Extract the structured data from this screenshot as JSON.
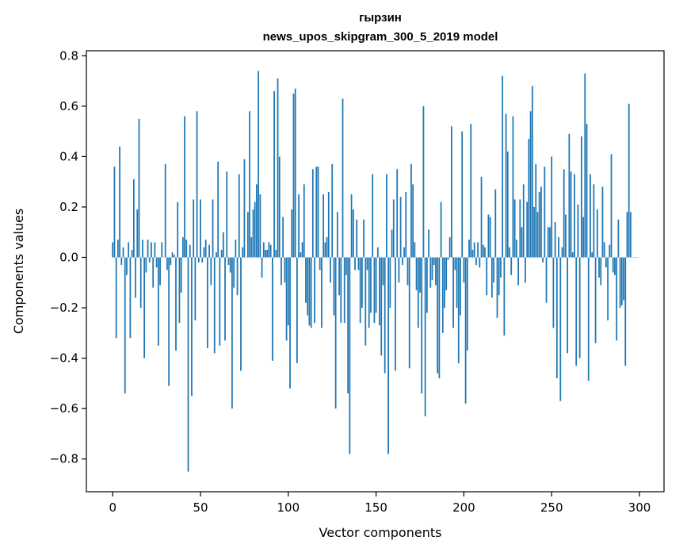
{
  "chart_data": {
    "type": "bar",
    "title_line1": "гырзин",
    "title_line2": "news_upos_skipgram_300_5_2019 model",
    "xlabel": "Vector components",
    "ylabel": "Components values",
    "xlim": [
      -15,
      314
    ],
    "ylim": [
      -0.93,
      0.82
    ],
    "xticks": [
      0,
      50,
      100,
      150,
      200,
      250,
      300
    ],
    "xtick_labels": [
      "0",
      "50",
      "100",
      "150",
      "200",
      "250",
      "300"
    ],
    "yticks": [
      -0.8,
      -0.6,
      -0.4,
      -0.2,
      0.0,
      0.2,
      0.4,
      0.6,
      0.8
    ],
    "ytick_labels": [
      "−0.8",
      "−0.6",
      "−0.4",
      "−0.2",
      "0.0",
      "0.2",
      "0.4",
      "0.6",
      "0.8"
    ],
    "bar_color": "#1f77b4",
    "grid": false,
    "values": [
      0.06,
      0.36,
      -0.32,
      0.07,
      0.44,
      -0.03,
      0.04,
      -0.54,
      -0.07,
      0.06,
      -0.32,
      0.03,
      0.31,
      -0.16,
      0.19,
      0.55,
      -0.2,
      0.07,
      -0.4,
      -0.06,
      0.07,
      -0.02,
      0.06,
      -0.12,
      0.06,
      -0.04,
      -0.35,
      -0.11,
      0.06,
      0.0,
      0.37,
      -0.05,
      -0.51,
      -0.03,
      0.02,
      0.01,
      -0.37,
      0.22,
      -0.26,
      -0.14,
      0.08,
      0.56,
      0.07,
      -0.85,
      0.05,
      -0.55,
      0.23,
      -0.25,
      0.58,
      -0.02,
      0.23,
      -0.02,
      0.04,
      0.07,
      -0.36,
      0.05,
      -0.11,
      0.23,
      -0.38,
      0.02,
      0.38,
      -0.35,
      0.03,
      0.1,
      -0.33,
      0.34,
      -0.03,
      -0.06,
      -0.6,
      -0.12,
      0.07,
      -0.15,
      0.33,
      -0.45,
      0.04,
      0.39,
      0.0,
      0.18,
      0.58,
      0.08,
      0.19,
      0.22,
      0.29,
      0.74,
      0.25,
      -0.08,
      0.06,
      0.03,
      0.03,
      0.06,
      0.05,
      -0.41,
      0.66,
      0.03,
      0.71,
      0.4,
      -0.11,
      0.16,
      -0.1,
      -0.33,
      -0.27,
      -0.52,
      0.19,
      0.65,
      0.67,
      -0.42,
      0.25,
      0.02,
      0.06,
      0.29,
      -0.18,
      -0.23,
      -0.27,
      -0.28,
      0.35,
      -0.26,
      0.36,
      0.36,
      -0.05,
      -0.28,
      0.25,
      0.06,
      0.08,
      0.26,
      -0.1,
      0.37,
      -0.23,
      -0.6,
      0.18,
      -0.15,
      -0.26,
      0.63,
      -0.26,
      -0.07,
      -0.54,
      -0.78,
      0.25,
      0.19,
      -0.05,
      0.15,
      -0.05,
      -0.26,
      -0.2,
      0.15,
      -0.35,
      -0.05,
      -0.28,
      -0.22,
      0.33,
      -0.26,
      -0.22,
      0.04,
      -0.27,
      -0.39,
      -0.11,
      -0.46,
      0.33,
      -0.78,
      -0.2,
      0.11,
      0.23,
      -0.45,
      0.35,
      -0.1,
      0.24,
      -0.03,
      0.04,
      0.26,
      -0.11,
      -0.44,
      0.37,
      0.29,
      0.06,
      -0.13,
      -0.28,
      -0.14,
      -0.54,
      0.6,
      -0.63,
      -0.22,
      0.11,
      -0.12,
      -0.09,
      -0.03,
      -0.11,
      -0.46,
      -0.48,
      0.22,
      -0.3,
      -0.2,
      -0.13,
      -0.01,
      0.08,
      0.52,
      -0.28,
      -0.05,
      -0.2,
      -0.42,
      -0.23,
      0.5,
      -0.1,
      -0.58,
      -0.37,
      0.07,
      0.53,
      0.03,
      0.06,
      -0.03,
      0.06,
      -0.04,
      0.32,
      0.05,
      0.04,
      -0.15,
      0.17,
      0.16,
      -0.16,
      -0.1,
      0.27,
      -0.24,
      -0.15,
      -0.08,
      0.72,
      -0.31,
      0.57,
      0.42,
      0.04,
      -0.07,
      0.56,
      0.23,
      0.07,
      -0.11,
      0.23,
      0.12,
      0.29,
      -0.1,
      0.22,
      0.47,
      0.58,
      0.68,
      0.2,
      0.37,
      0.18,
      0.26,
      0.28,
      -0.02,
      0.36,
      -0.18,
      0.12,
      0.12,
      0.4,
      -0.28,
      0.14,
      -0.48,
      0.08,
      -0.57,
      0.04,
      0.35,
      0.17,
      -0.38,
      0.49,
      0.34,
      0.02,
      0.33,
      -0.43,
      0.21,
      -0.4,
      0.48,
      0.16,
      0.73,
      0.53,
      -0.49,
      0.33,
      0.02,
      0.29,
      -0.34,
      0.19,
      -0.08,
      -0.11,
      0.28,
      0.06,
      -0.04,
      -0.25,
      0.05,
      0.41,
      -0.06,
      -0.07,
      -0.33,
      0.15,
      -0.2,
      -0.19,
      -0.17,
      -0.43,
      0.18,
      0.61,
      0.18,
      0.0,
      0.0,
      0.0,
      0.0
    ]
  }
}
